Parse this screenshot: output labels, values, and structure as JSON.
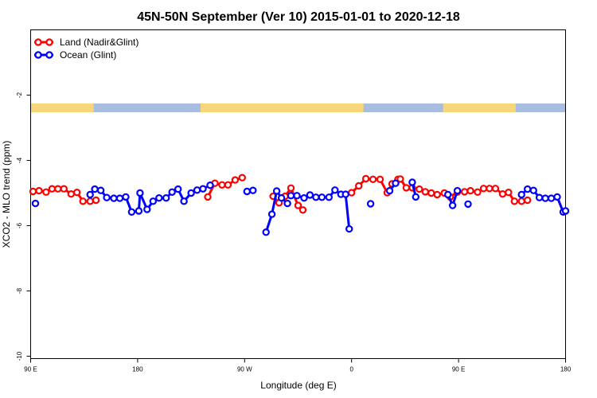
{
  "chart_data": {
    "type": "line",
    "title": "45N-50N September (Ver 10)   2015-01-01 to 2020-12-18",
    "xlabel": "Longitude (deg E)",
    "ylabel": "XCO2 - MLO trend (ppm)",
    "x_tick_labels": [
      "90 E",
      "180",
      "90 W",
      "0",
      "90 E",
      "180"
    ],
    "x_tick_values": [
      90,
      180,
      270,
      360,
      450,
      540
    ],
    "xlim": [
      90,
      540
    ],
    "y_tick_labels": [
      "-10",
      "-8",
      "-6",
      "-4",
      "-2"
    ],
    "y_tick_values": [
      -10,
      -8,
      -6,
      -4,
      -2
    ],
    "ylim": [
      -10,
      0
    ],
    "legend_position": "top-left",
    "grid": false,
    "land_ocean_band": {
      "y_range": [
        -2.5,
        -2.25
      ],
      "land_color": "#f7d77a",
      "ocean_color": "#a9bde0",
      "land_intervals": [
        [
          90,
          143
        ],
        [
          233,
          370
        ],
        [
          437,
          498
        ]
      ]
    },
    "series": [
      {
        "name": "Land (Nadir&Glint)",
        "color": "#ff0000",
        "segments": [
          [
            [
              92,
              -4.95
            ],
            [
              97,
              -4.93
            ],
            [
              103,
              -4.97
            ],
            [
              108,
              -4.87
            ],
            [
              113,
              -4.87
            ],
            [
              118,
              -4.87
            ],
            [
              124,
              -5.03
            ],
            [
              129,
              -4.98
            ],
            [
              134,
              -5.25
            ],
            [
              140,
              -5.25
            ],
            [
              145,
              -5.22
            ]
          ],
          [
            [
              239,
              -5.12
            ],
            [
              245,
              -4.7
            ],
            [
              251,
              -4.75
            ],
            [
              256,
              -4.75
            ],
            [
              262,
              -4.6
            ],
            [
              268,
              -4.53
            ]
          ],
          [
            [
              294,
              -5.1
            ],
            [
              299,
              -5.3
            ],
            [
              304,
              -5.1
            ],
            [
              309,
              -4.85
            ],
            [
              315,
              -5.38
            ],
            [
              319,
              -5.52
            ]
          ],
          [
            [
              360,
              -4.99
            ],
            [
              366,
              -4.78
            ],
            [
              372,
              -4.56
            ],
            [
              378,
              -4.58
            ],
            [
              384,
              -4.58
            ],
            [
              390,
              -4.99
            ],
            [
              394,
              -4.72
            ],
            [
              399,
              -4.58
            ]
          ],
          [
            [
              401,
              -4.57
            ],
            [
              406,
              -4.84
            ],
            [
              411,
              -4.84
            ],
            [
              417,
              -4.88
            ],
            [
              422,
              -4.96
            ],
            [
              427,
              -5.0
            ],
            [
              432,
              -5.05
            ],
            [
              438,
              -5.0
            ],
            [
              443,
              -5.12
            ],
            [
              449,
              -4.97
            ],
            [
              455,
              -4.96
            ],
            [
              460,
              -4.93
            ],
            [
              466,
              -4.97
            ],
            [
              471,
              -4.86
            ],
            [
              476,
              -4.86
            ],
            [
              481,
              -4.86
            ],
            [
              487,
              -5.03
            ],
            [
              492,
              -4.98
            ],
            [
              497,
              -5.25
            ],
            [
              503,
              -5.25
            ],
            [
              508,
              -5.22
            ]
          ]
        ]
      },
      {
        "name": "Ocean (Glint)",
        "color": "#0000ff",
        "segments": [
          [
            [
              94,
              -5.32
            ]
          ],
          [
            [
              140,
              -5.05
            ],
            [
              144,
              -4.88
            ],
            [
              149,
              -4.92
            ],
            [
              154,
              -5.14
            ],
            [
              160,
              -5.16
            ],
            [
              165,
              -5.16
            ],
            [
              170,
              -5.12
            ],
            [
              175,
              -5.58
            ],
            [
              181,
              -5.55
            ],
            [
              182,
              -5.0
            ],
            [
              188,
              -5.5
            ],
            [
              193,
              -5.25
            ],
            [
              198,
              -5.15
            ],
            [
              204,
              -5.15
            ],
            [
              209,
              -4.97
            ],
            [
              214,
              -4.88
            ],
            [
              219,
              -5.25
            ],
            [
              225,
              -5.0
            ],
            [
              230,
              -4.91
            ],
            [
              235,
              -4.87
            ],
            [
              241,
              -4.76
            ]
          ],
          [
            [
              272,
              -4.95
            ],
            [
              277,
              -4.92
            ]
          ],
          [
            [
              288,
              -6.2
            ],
            [
              293,
              -5.65
            ],
            [
              297,
              -4.94
            ],
            [
              301,
              -5.15
            ],
            [
              306,
              -5.32
            ]
          ],
          [
            [
              309,
              -5.08
            ],
            [
              314,
              -5.08
            ],
            [
              320,
              -5.15
            ],
            [
              325,
              -5.06
            ],
            [
              330,
              -5.13
            ],
            [
              335,
              -5.13
            ],
            [
              341,
              -5.13
            ],
            [
              346,
              -4.91
            ],
            [
              351,
              -5.04
            ],
            [
              355,
              -5.04
            ],
            [
              358,
              -6.1
            ]
          ],
          [
            [
              376,
              -5.33
            ]
          ],
          [
            [
              392,
              -4.93
            ],
            [
              397,
              -4.7
            ]
          ],
          [
            [
              411,
              -4.67
            ],
            [
              414,
              -5.12
            ]
          ],
          [
            [
              441,
              -5.05
            ],
            [
              445,
              -5.38
            ],
            [
              449,
              -4.93
            ]
          ],
          [
            [
              458,
              -5.34
            ]
          ],
          [
            [
              503,
              -5.05
            ],
            [
              508,
              -4.88
            ],
            [
              513,
              -4.92
            ],
            [
              518,
              -5.14
            ],
            [
              523,
              -5.16
            ],
            [
              528,
              -5.16
            ],
            [
              533,
              -5.12
            ],
            [
              538,
              -5.58
            ],
            [
              540,
              -5.55
            ]
          ]
        ]
      }
    ]
  }
}
